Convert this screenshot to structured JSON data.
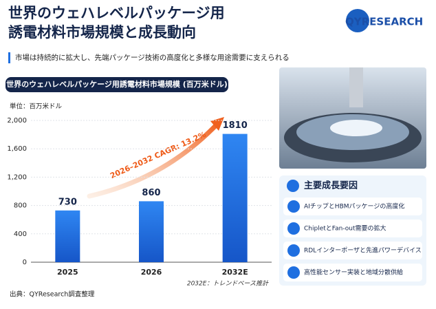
{
  "header": {
    "title_lines": [
      "世界のウェハレベルパッケージ用",
      "誘電材料市場規模と成長動向"
    ],
    "subtitle": "市場は持続的に拡大し、先端パッケージ技術の高度化と多様な用途需要に支えられる",
    "logo": "QYRESEARCH"
  },
  "chart_data": {
    "type": "bar",
    "title": "世界のウェハレベルパッケージ用誘電材料市場規模 (百万米ドル)",
    "unit_label": "単位：百万米ドル",
    "categories": [
      "2025",
      "2026",
      "2032E"
    ],
    "values": [
      730,
      860,
      1810
    ],
    "color": "#1f6fe0",
    "ylim": [
      0,
      2000
    ],
    "yticks": [
      0,
      400,
      800,
      {
        "value": 1200,
        "label": "1,200"
      },
      {
        "value": 1600,
        "label": "1,600"
      },
      {
        "value": 2000,
        "label": "2,000"
      }
    ],
    "grid": true,
    "annotation": "2026–2032 CAGR: 13.2%",
    "note": "2032E：トレンドベース推計"
  },
  "factors": {
    "title": "主要成長要因",
    "items": [
      "AIチップとHBMパッケージの高度化",
      "ChipletとFan-out需要の拡大",
      "RDLインターポーザと先進パワーデバイス",
      "高性能センサー実装と地域分散供給"
    ]
  },
  "source": "出典：QYResearch調査整理"
}
